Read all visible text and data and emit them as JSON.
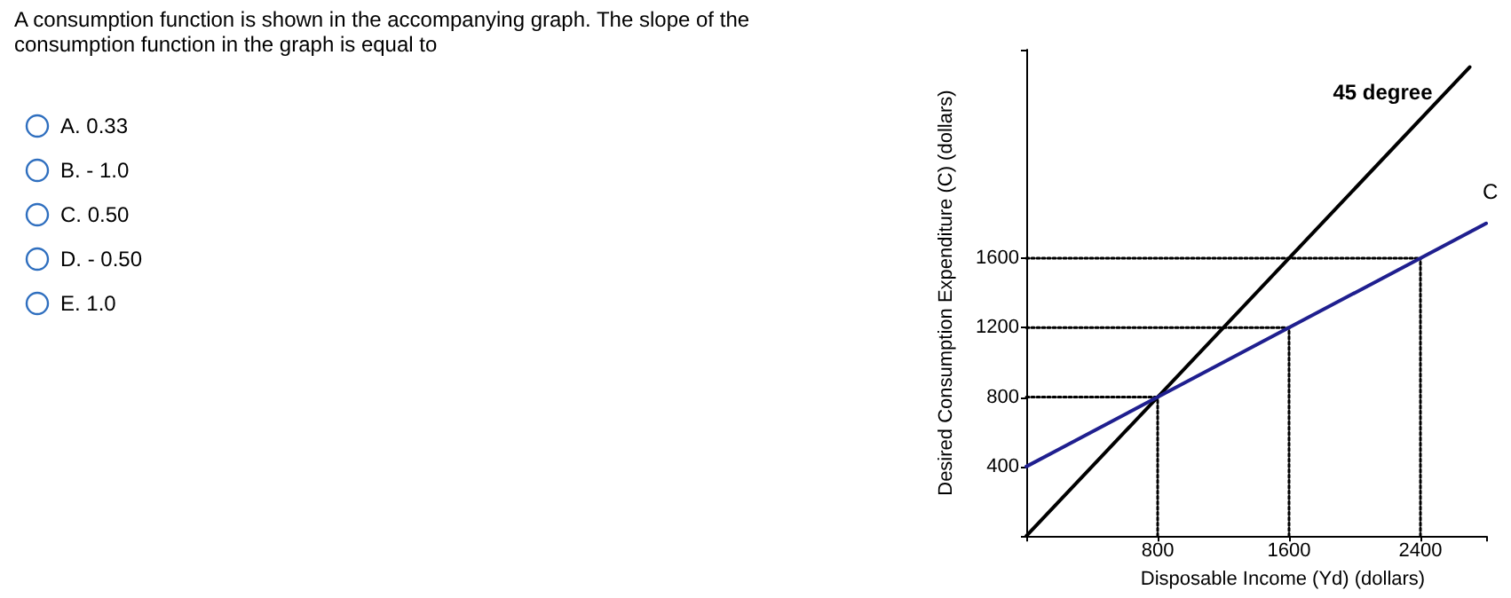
{
  "chart_data": {
    "type": "line",
    "title": "A consumption function is shown in the accompanying graph. The slope of the consumption function in the graph is equal to",
    "annotations": [
      "A.  0.33",
      "B.   - 1.0",
      "C.  0.50",
      "D.   - 0.50",
      "E.  1.0"
    ],
    "xlabel": "Disposable Income (Yd) (dollars)",
    "ylabel": "Desired Consumption Expenditure (C) (dollars)",
    "xlim": [
      0,
      2800
    ],
    "ylim": [
      0,
      2800
    ],
    "xticks": [
      {
        "value": 0,
        "label": null
      },
      800,
      1600,
      2400,
      {
        "value": 2800,
        "label": null
      }
    ],
    "yticks": [
      {
        "value": 0,
        "label": null
      },
      400,
      800,
      1200,
      1600,
      {
        "value": 2800,
        "label": null
      }
    ],
    "grid": false,
    "legend": false,
    "marker": "none",
    "series": [
      {
        "name": "45 degree",
        "color": "#000000",
        "x": [
          0,
          2700
        ],
        "values": [
          0,
          2700
        ],
        "line_style": "solid"
      },
      {
        "name": "C",
        "color": "#1f1f8f",
        "x": [
          0,
          2800
        ],
        "values": [
          400,
          1800
        ],
        "line_style": "solid"
      },
      {
        "color": "#000000",
        "x": [
          800,
          800
        ],
        "values": [
          0,
          800
        ],
        "line_style": "dotted"
      },
      {
        "color": "#000000",
        "x": [
          1600,
          1600
        ],
        "values": [
          0,
          1200
        ],
        "line_style": "dotted"
      },
      {
        "color": "#000000",
        "x": [
          2400,
          2400
        ],
        "values": [
          0,
          1600
        ],
        "line_style": "dotted"
      },
      {
        "color": "#000000",
        "x": [
          0,
          800
        ],
        "values": [
          800,
          800
        ],
        "line_style": "dotted"
      },
      {
        "color": "#000000",
        "x": [
          0,
          1600
        ],
        "values": [
          1200,
          1200
        ],
        "line_style": "dotted"
      },
      {
        "color": "#000000",
        "x": [
          0,
          2400
        ],
        "values": [
          1600,
          1600
        ],
        "line_style": "dotted"
      }
    ]
  }
}
